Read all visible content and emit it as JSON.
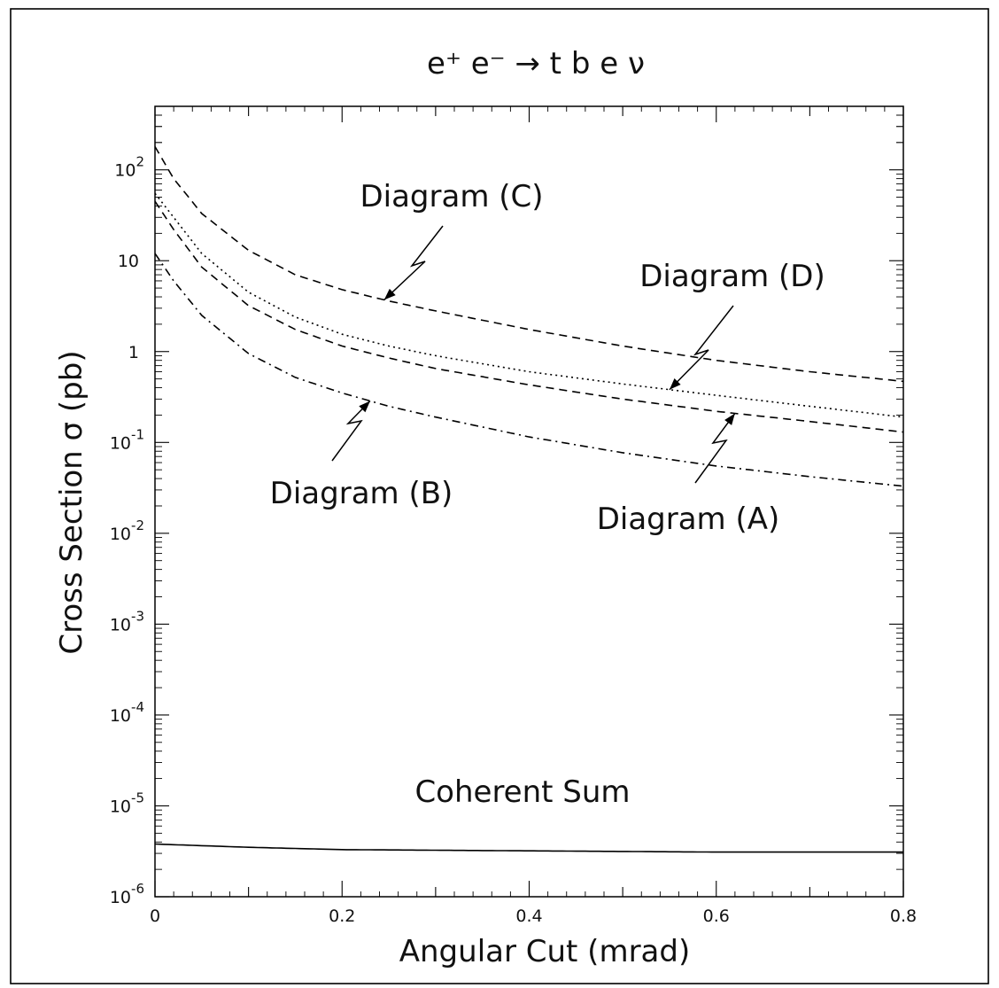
{
  "chart_data": {
    "type": "line",
    "title": "e⁺ e⁻ → t b e ν",
    "xlabel": "Angular Cut (mrad)",
    "ylabel": "Cross Section σ (pb)",
    "xscale": "linear",
    "yscale": "log",
    "xlim": [
      0,
      0.8
    ],
    "ylim": [
      1e-06,
      500
    ],
    "x_ticks": [
      "0",
      "0.2",
      "0.4",
      "0.6",
      "0.8"
    ],
    "y_ticks": [
      {
        "base": "10",
        "exp": "-6",
        "value": 1e-06
      },
      {
        "base": "10",
        "exp": "-5",
        "value": 1e-05
      },
      {
        "base": "10",
        "exp": "-4",
        "value": 0.0001
      },
      {
        "base": "10",
        "exp": "-3",
        "value": 0.001
      },
      {
        "base": "10",
        "exp": "-2",
        "value": 0.01
      },
      {
        "base": "10",
        "exp": "-1",
        "value": 0.1
      },
      {
        "base": "1",
        "exp": "",
        "value": 1
      },
      {
        "base": "10",
        "exp": "",
        "value": 10
      },
      {
        "base": "10",
        "exp": "2",
        "value": 100
      }
    ],
    "grid": false,
    "legend": "none",
    "series": [
      {
        "name": "Diagram (C)",
        "style": "dashed",
        "x": [
          0,
          0.02,
          0.05,
          0.1,
          0.15,
          0.2,
          0.25,
          0.3,
          0.4,
          0.5,
          0.6,
          0.7,
          0.8
        ],
        "y": [
          180,
          80,
          33,
          13,
          7.0,
          4.8,
          3.6,
          2.8,
          1.75,
          1.15,
          0.8,
          0.6,
          0.47
        ]
      },
      {
        "name": "Diagram (D)",
        "style": "dotted",
        "x": [
          0,
          0.02,
          0.05,
          0.1,
          0.15,
          0.2,
          0.25,
          0.3,
          0.4,
          0.5,
          0.6,
          0.7,
          0.8
        ],
        "y": [
          55,
          30,
          12,
          4.5,
          2.4,
          1.55,
          1.15,
          0.9,
          0.6,
          0.44,
          0.33,
          0.25,
          0.19
        ]
      },
      {
        "name": "Diagram (A)",
        "style": "dashed",
        "x": [
          0,
          0.02,
          0.05,
          0.1,
          0.15,
          0.2,
          0.25,
          0.3,
          0.4,
          0.5,
          0.6,
          0.7,
          0.8
        ],
        "y": [
          45,
          22,
          8.5,
          3.2,
          1.75,
          1.15,
          0.85,
          0.65,
          0.43,
          0.3,
          0.22,
          0.17,
          0.13
        ]
      },
      {
        "name": "Diagram (B)",
        "style": "dashdot",
        "x": [
          0,
          0.02,
          0.05,
          0.1,
          0.15,
          0.2,
          0.25,
          0.3,
          0.4,
          0.5,
          0.6,
          0.7,
          0.8
        ],
        "y": [
          12,
          6.0,
          2.5,
          0.95,
          0.52,
          0.35,
          0.25,
          0.19,
          0.115,
          0.077,
          0.055,
          0.042,
          0.033
        ]
      },
      {
        "name": "Coherent Sum",
        "style": "solid",
        "x": [
          0,
          0.1,
          0.2,
          0.4,
          0.6,
          0.8
        ],
        "y": [
          3.8e-06,
          3.5e-06,
          3.3e-06,
          3.2e-06,
          3.1e-06,
          3.1e-06
        ]
      }
    ],
    "annotations": [
      {
        "text": "Diagram (C)",
        "target_series": "Diagram (C)",
        "target_x": 0.245
      },
      {
        "text": "Diagram (D)",
        "target_series": "Diagram (D)",
        "target_x": 0.55
      },
      {
        "text": "Diagram (A)",
        "target_series": "Diagram (A)",
        "target_x": 0.62
      },
      {
        "text": "Diagram (B)",
        "target_series": "Diagram (B)",
        "target_x": 0.23
      },
      {
        "text": "Coherent Sum",
        "target_series": "Coherent Sum",
        "target_x": null
      }
    ]
  }
}
